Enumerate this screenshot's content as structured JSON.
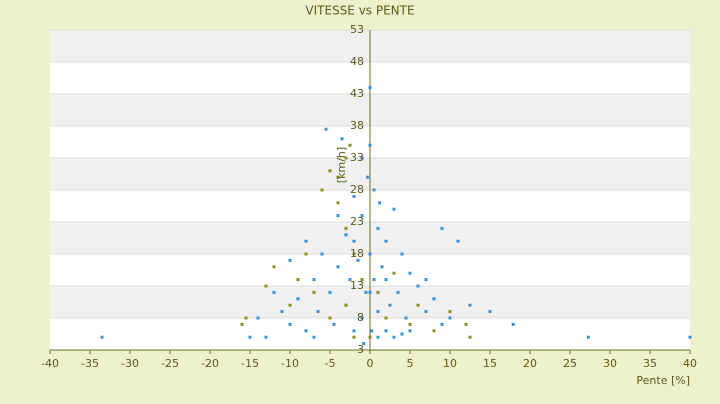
{
  "chart_data": {
    "type": "scatter",
    "title": "VITESSE vs PENTE",
    "x_label": "Pente [%]",
    "y_label": "[km/h]",
    "xlim": [
      -40,
      40
    ],
    "xticks": [
      -40,
      -35,
      -30,
      -25,
      -20,
      -15,
      -10,
      -5,
      0,
      5,
      10,
      15,
      20,
      25,
      30,
      35,
      40
    ],
    "ylim": [
      3,
      53
    ],
    "yticks": [
      3,
      8,
      13,
      18,
      23,
      28,
      33,
      38,
      43,
      48,
      53
    ],
    "grid": true,
    "series": [
      {
        "color": "#3a8fd8",
        "x": [
          -33.5,
          27.3,
          40,
          17.9,
          15,
          12.5,
          11,
          9,
          8,
          7,
          6,
          5,
          4.5,
          4,
          3.5,
          3,
          2.5,
          2,
          2,
          1.5,
          1,
          1,
          0.5,
          0.5,
          0.2,
          0,
          -0.3,
          -0.5,
          -1,
          -1,
          -1.5,
          -2,
          -2,
          -2.5,
          -3,
          -3,
          -3.5,
          -4,
          -4.5,
          -5,
          -5.5,
          -6,
          -6.5,
          -7,
          -8,
          -8,
          -9,
          -10,
          -10,
          -11,
          -12,
          -13,
          -14,
          -15,
          -1,
          0,
          -4,
          1,
          3,
          5,
          9,
          7,
          2,
          -2,
          0,
          1.2,
          -0.8,
          4,
          10,
          -7,
          0
        ],
        "values": [
          5,
          5,
          5,
          7,
          9,
          10,
          20,
          22,
          11,
          9,
          13,
          15,
          8,
          18,
          12,
          25,
          10,
          20,
          6,
          16,
          22,
          9,
          28,
          14,
          6,
          18,
          30,
          12,
          24,
          8,
          17,
          27,
          6,
          14,
          21,
          10,
          36,
          16,
          7,
          12,
          37.5,
          18,
          9,
          14,
          20,
          6,
          11,
          17,
          7,
          9,
          12,
          5,
          8,
          5,
          33,
          35,
          24,
          5,
          5,
          6,
          7,
          14,
          14,
          20,
          12,
          26,
          4,
          5.5,
          8,
          5,
          44
        ]
      },
      {
        "color": "#8c8a1e",
        "x": [
          -3,
          -2.5,
          -5,
          -6,
          -4,
          -3,
          -2,
          -8,
          -12,
          -13,
          -15.5,
          -16,
          -10,
          -7,
          -5,
          -3,
          -1,
          1,
          2,
          3,
          5,
          8,
          10,
          12,
          12.5,
          -2,
          0,
          6,
          -9,
          -4
        ],
        "values": [
          33,
          35,
          31,
          28,
          26,
          22,
          18,
          18,
          16,
          13,
          8,
          7,
          10,
          12,
          8,
          10,
          14,
          12,
          8,
          15,
          7,
          6,
          9,
          7,
          5,
          5,
          5,
          10,
          14,
          30
        ]
      }
    ]
  }
}
